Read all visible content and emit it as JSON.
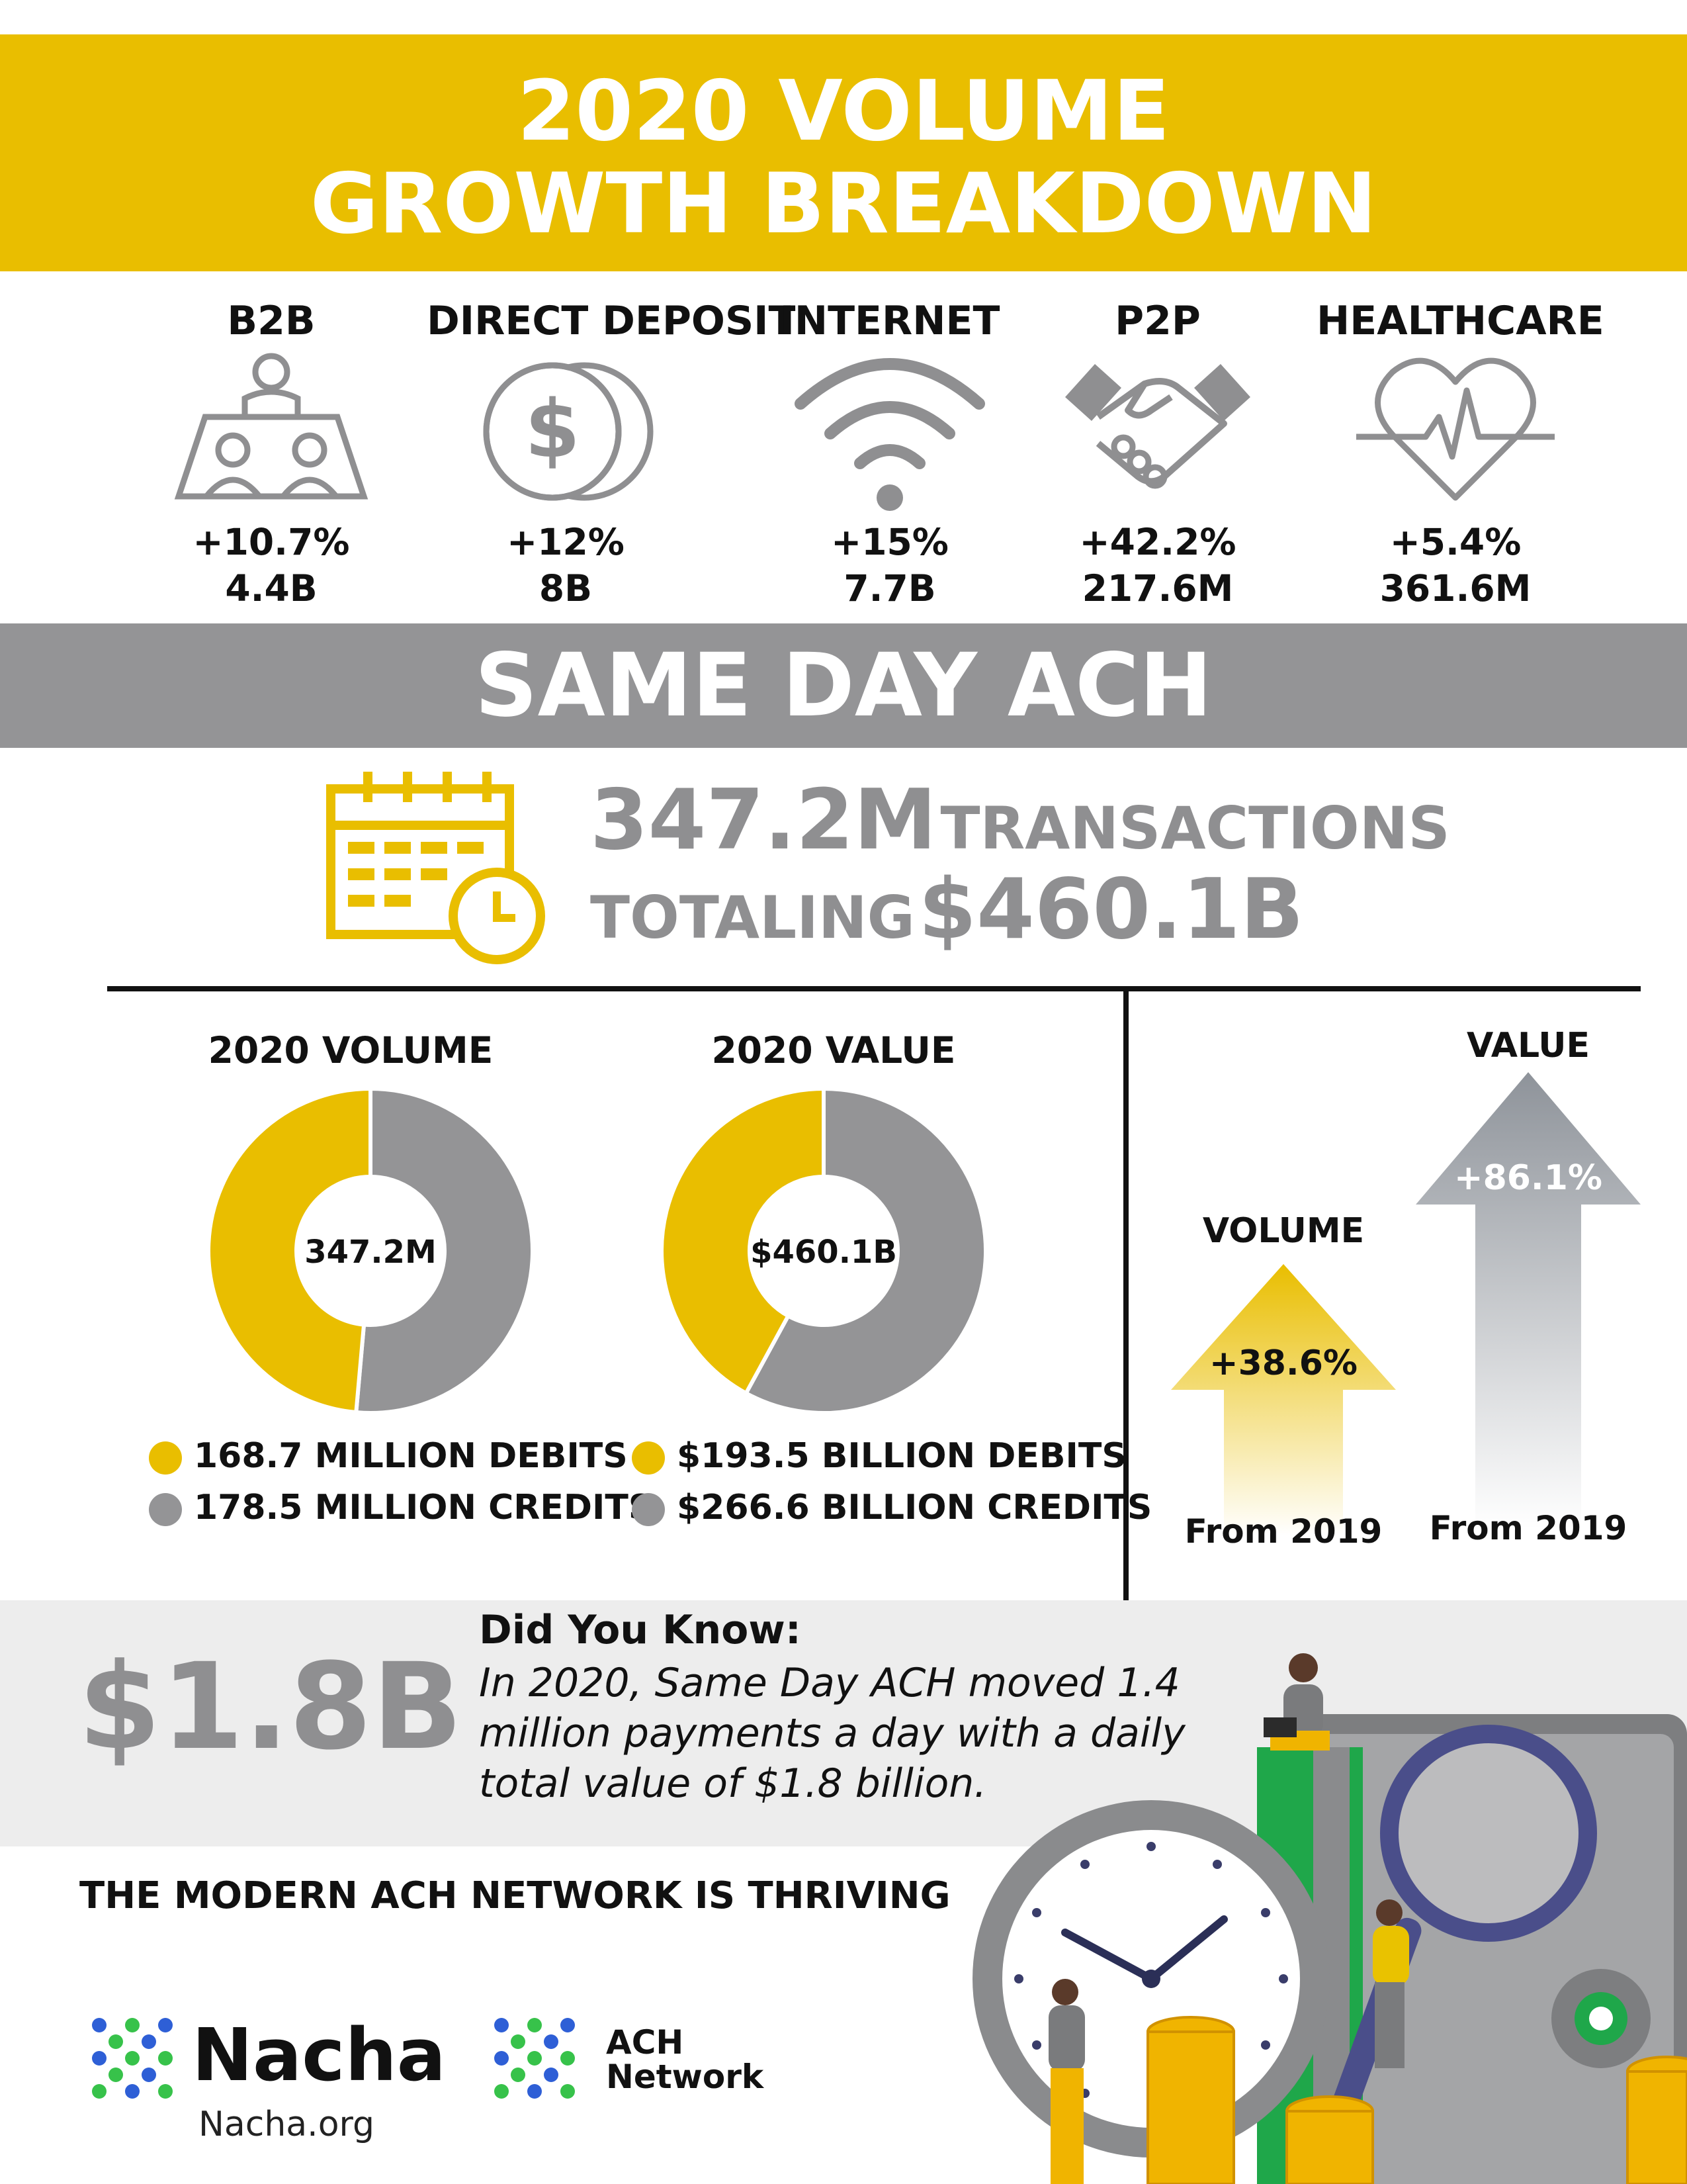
{
  "header": {
    "line1": "2020 VOLUME",
    "line2": "GROWTH BREAKDOWN",
    "color": "#e9be00"
  },
  "categories": [
    {
      "title": "B2B",
      "pct": "+10.7%",
      "value": "4.4B",
      "icon": "meeting-table-icon"
    },
    {
      "title": "DIRECT DEPOSIT",
      "pct": "+12%",
      "value": "8B",
      "icon": "dollar-coins-icon"
    },
    {
      "title": "INTERNET",
      "pct": "+15%",
      "value": "7.7B",
      "icon": "wifi-icon"
    },
    {
      "title": "P2P",
      "pct": "+42.2%",
      "value": "217.6M",
      "icon": "handshake-icon"
    },
    {
      "title": "HEALTHCARE",
      "pct": "+5.4%",
      "value": "361.6M",
      "icon": "heartbeat-icon"
    }
  ],
  "same_day": {
    "title": "SAME DAY ACH",
    "transactions_num": "347.2M",
    "transactions_word": "TRANSACTIONS",
    "totaling_word": "TOTALING",
    "total_value": "$460.1B"
  },
  "colors": {
    "gold": "#e9be00",
    "gray": "#949496"
  },
  "chart_data": [
    {
      "type": "pie",
      "title": "2020 VOLUME",
      "center_label": "347.2M",
      "categories": [
        "168.7 MILLION DEBITS",
        "178.5 MILLION CREDITS"
      ],
      "values": [
        168.7,
        178.5
      ],
      "colors": [
        "#e9be00",
        "#949496"
      ]
    },
    {
      "type": "pie",
      "title": "2020 VALUE",
      "center_label": "$460.1B",
      "categories": [
        "$193.5 BILLION DEBITS",
        "$266.6 BILLION CREDITS"
      ],
      "values": [
        193.5,
        266.6
      ],
      "colors": [
        "#e9be00",
        "#949496"
      ]
    }
  ],
  "growth": {
    "volume": {
      "label": "VOLUME",
      "pct": "+38.6%",
      "from": "From 2019"
    },
    "value": {
      "label": "VALUE",
      "pct": "+86.1%",
      "from": "From 2019"
    }
  },
  "did_you_know": {
    "big_number": "$1.8B",
    "heading": "Did You Know:",
    "line1": "In 2020, Same Day ACH moved 1.4",
    "line2": "million payments a day with a daily",
    "line3": "total value of $1.8 billion."
  },
  "footer": {
    "tagline": "THE MODERN ACH NETWORK IS THRIVING",
    "nacha_name": "Nacha",
    "nacha_url": "Nacha.org",
    "ach_line1": "ACH",
    "ach_line2": "Network"
  }
}
